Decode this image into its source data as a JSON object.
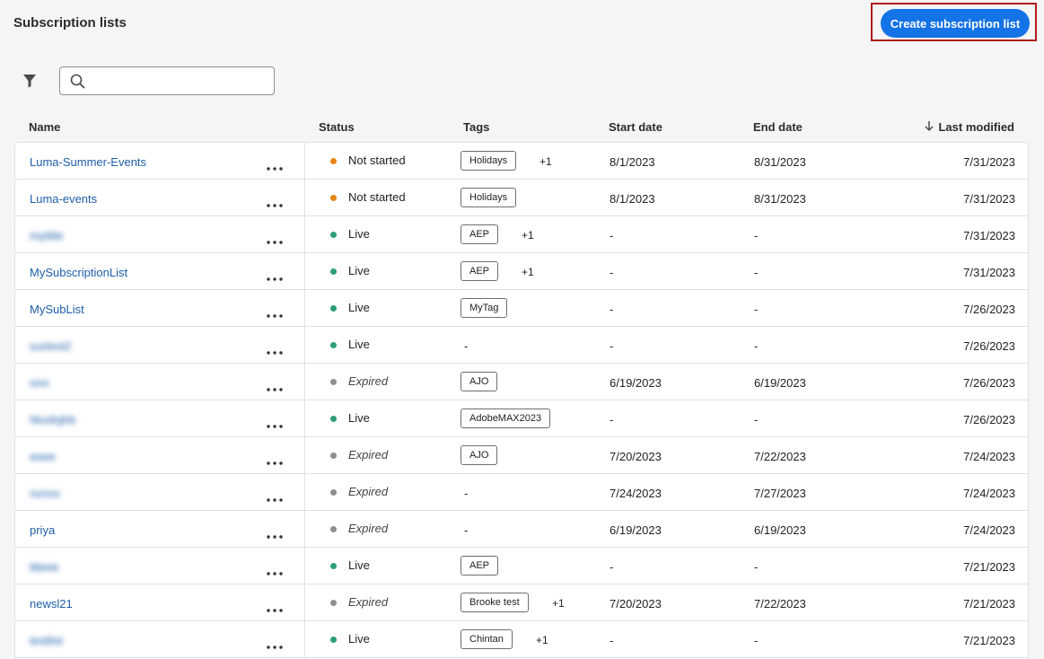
{
  "header": {
    "title": "Subscription lists",
    "button": "Create subscription list"
  },
  "table": {
    "columns": [
      "Name",
      "Status",
      "Tags",
      "Start date",
      "End date",
      "Last modified"
    ],
    "rows": [
      {
        "name": "Luma-Summer-Events",
        "status": "Not started",
        "dot_color": "#e68619",
        "italic": false,
        "tags": [
          "Holidays"
        ],
        "tags_more": "+1",
        "start": "8/1/2023",
        "end": "8/31/2023",
        "modified": "7/31/2023"
      },
      {
        "name": "Luma-events",
        "status": "Not started",
        "dot_color": "#e68619",
        "italic": false,
        "tags": [
          "Holidays"
        ],
        "start": "8/1/2023",
        "end": "8/31/2023",
        "modified": "7/31/2023"
      },
      {
        "name": "mytitle",
        "blurred": true,
        "status": "Live",
        "dot_color": "#2d9d78",
        "italic": false,
        "tags": [
          "AEP"
        ],
        "tags_more": "+1",
        "start": "-",
        "end": "-",
        "modified": "7/31/2023"
      },
      {
        "name": "MySubscriptionList",
        "status": "Live",
        "dot_color": "#2d9d78",
        "italic": false,
        "tags": [
          "AEP"
        ],
        "tags_more": "+1",
        "start": "-",
        "end": "-",
        "modified": "7/31/2023"
      },
      {
        "name": "MySubList",
        "status": "Live",
        "dot_color": "#2d9d78",
        "italic": false,
        "tags": [
          "MyTag"
        ],
        "start": "-",
        "end": "-",
        "modified": "7/26/2023"
      },
      {
        "name": "surtest2",
        "blurred": true,
        "status": "Live",
        "dot_color": "#2d9d78",
        "italic": false,
        "tags": [],
        "tags_none": "-",
        "start": "-",
        "end": "-",
        "modified": "7/26/2023"
      },
      {
        "name": "nnn",
        "blurred": true,
        "status": "Expired",
        "dot_color": "#8e8e8e",
        "italic": true,
        "tags": [
          "AJO"
        ],
        "start": "6/19/2023",
        "end": "6/19/2023",
        "modified": "7/26/2023"
      },
      {
        "name": "hkvdsjhb",
        "blurred": true,
        "status": "Live",
        "dot_color": "#2d9d78",
        "italic": false,
        "tags": [
          "AdobeMAX2023"
        ],
        "start": "-",
        "end": "-",
        "modified": "7/26/2023"
      },
      {
        "name": "eeee",
        "blurred": true,
        "status": "Expired",
        "dot_color": "#8e8e8e",
        "italic": true,
        "tags": [
          "AJO"
        ],
        "start": "7/20/2023",
        "end": "7/22/2023",
        "modified": "7/24/2023"
      },
      {
        "name": "nvnvv",
        "blurred": true,
        "status": "Expired",
        "dot_color": "#8e8e8e",
        "italic": true,
        "tags": [],
        "tags_none": "-",
        "start": "7/24/2023",
        "end": "7/27/2023",
        "modified": "7/24/2023"
      },
      {
        "name": "priya",
        "status": "Expired",
        "dot_color": "#8e8e8e",
        "italic": true,
        "tags": [],
        "tags_none": "-",
        "start": "6/19/2023",
        "end": "6/19/2023",
        "modified": "7/24/2023"
      },
      {
        "name": "ttteee",
        "blurred": true,
        "status": "Live",
        "dot_color": "#2d9d78",
        "italic": false,
        "tags": [
          "AEP"
        ],
        "start": "-",
        "end": "-",
        "modified": "7/21/2023"
      },
      {
        "name": "newsl21",
        "status": "Expired",
        "dot_color": "#8e8e8e",
        "italic": true,
        "tags": [
          "Brooke test"
        ],
        "tags_more": "+1",
        "start": "7/20/2023",
        "end": "7/22/2023",
        "modified": "7/21/2023"
      },
      {
        "name": "testlist",
        "blurred": true,
        "status": "Live",
        "dot_color": "#2d9d78",
        "italic": false,
        "tags": [
          "Chintan"
        ],
        "tags_more": "+1",
        "start": "-",
        "end": "-",
        "modified": "7/21/2023"
      }
    ]
  }
}
